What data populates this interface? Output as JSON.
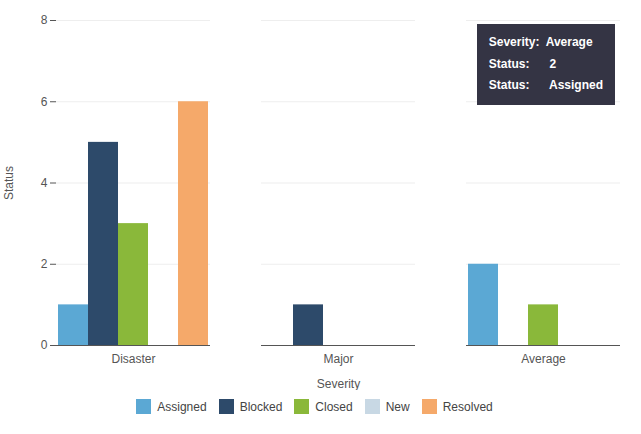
{
  "chart_data": {
    "type": "bar",
    "xlabel": "Severity",
    "ylabel": "Status",
    "categories": [
      "Disaster",
      "Major",
      "Average"
    ],
    "series": [
      {
        "name": "Assigned",
        "color": "#5ba8d4",
        "values": [
          1,
          0,
          2
        ]
      },
      {
        "name": "Blocked",
        "color": "#2d4a6a",
        "values": [
          5,
          1,
          0
        ]
      },
      {
        "name": "Closed",
        "color": "#8ab83a",
        "values": [
          3,
          0,
          1
        ]
      },
      {
        "name": "New",
        "color": "#c8d8e4",
        "values": [
          0,
          0,
          0
        ]
      },
      {
        "name": "Resolved",
        "color": "#f5a96a",
        "values": [
          6,
          0,
          0
        ]
      }
    ],
    "ylim": [
      0,
      8
    ],
    "yticks": [
      0,
      2,
      4,
      6,
      8
    ],
    "grid": true,
    "legend": "bottom",
    "annotations": [
      "Severity:  Average",
      "Status:      2",
      "Status:      Assigned"
    ]
  }
}
